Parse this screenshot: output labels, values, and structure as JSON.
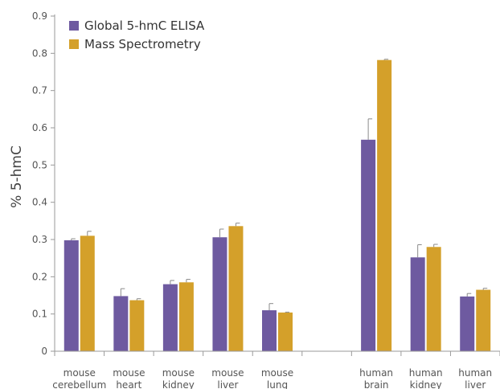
{
  "chart_data": {
    "type": "bar",
    "title": "",
    "xlabel": "",
    "ylabel": "% 5-hmC",
    "ylim": [
      0,
      0.9
    ],
    "yticks": [
      "0",
      "0.1",
      "0.2",
      "0.3",
      "0.4",
      "0.5",
      "0.6",
      "0.7",
      "0.8",
      "0.9"
    ],
    "grid": false,
    "legend_position": "top-left",
    "categories": [
      [
        "mouse",
        "cerebellum"
      ],
      [
        "mouse",
        "heart"
      ],
      [
        "mouse",
        "kidney"
      ],
      [
        "mouse",
        "liver"
      ],
      [
        "mouse",
        "lung"
      ],
      [
        "",
        ""
      ],
      [
        "human",
        "brain"
      ],
      [
        "human",
        "kidney"
      ],
      [
        "human",
        "liver"
      ]
    ],
    "series": [
      {
        "name": "Global 5-hmC ELISA",
        "color": "#6e5aa0",
        "values": [
          0.298,
          0.148,
          0.18,
          0.306,
          0.11,
          null,
          0.568,
          0.252,
          0.147
        ],
        "errors": [
          0.004,
          0.02,
          0.01,
          0.022,
          0.018,
          null,
          0.056,
          0.034,
          0.008
        ]
      },
      {
        "name": "Mass Spectrometry",
        "color": "#d4a02a",
        "values": [
          0.31,
          0.137,
          0.185,
          0.336,
          0.104,
          null,
          0.782,
          0.28,
          0.165
        ],
        "errors": [
          0.012,
          0.004,
          0.008,
          0.008,
          0.001,
          null,
          0.002,
          0.007,
          0.004
        ]
      }
    ]
  }
}
